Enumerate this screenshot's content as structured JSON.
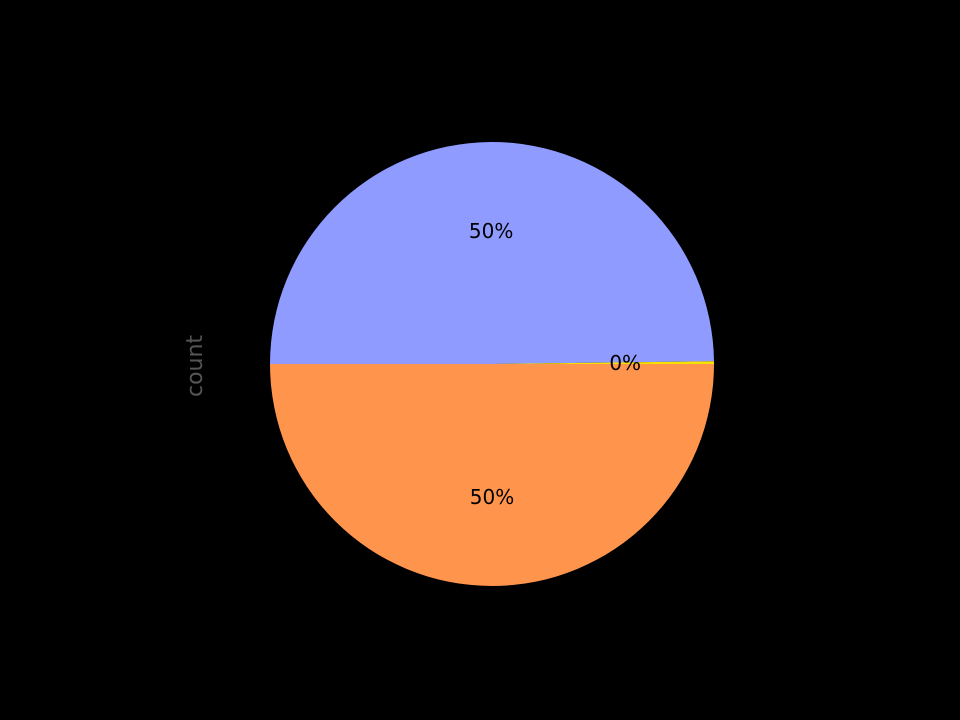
{
  "chart_data": {
    "type": "pie",
    "ylabel": "count",
    "slices": [
      {
        "value": 49.8,
        "label": "50%",
        "color": "#8f9bff"
      },
      {
        "value": 0.2,
        "label": "0%",
        "color": "#f7e000"
      },
      {
        "value": 50.0,
        "label": "50%",
        "color": "#ff944d"
      }
    ],
    "start_angle_deg": 180,
    "direction": "clockwise"
  },
  "colors": {
    "background": "#000000",
    "axis_label": "#555555",
    "text": "#000000"
  }
}
